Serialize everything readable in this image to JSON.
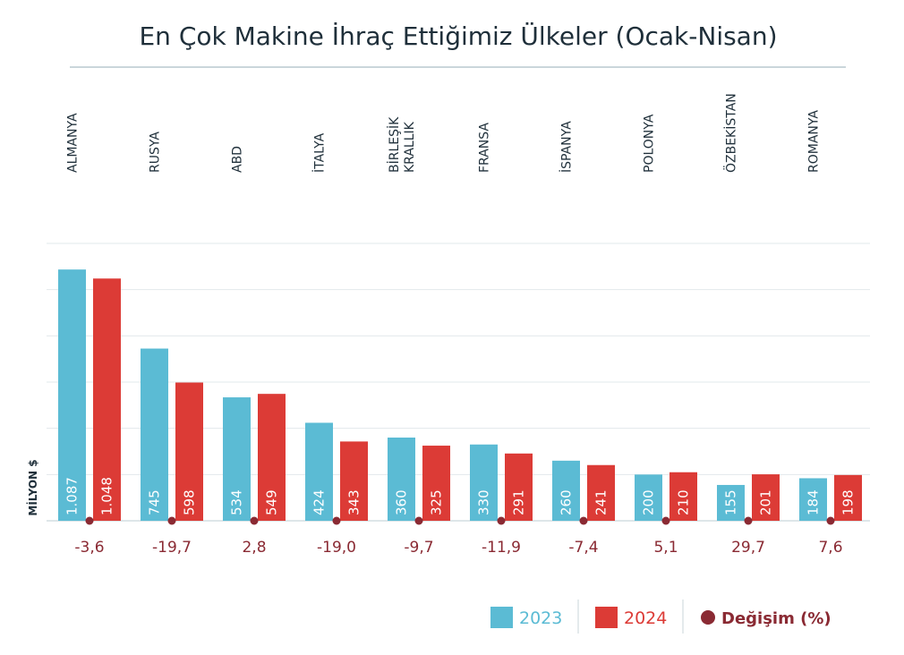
{
  "chart_data": {
    "type": "bar",
    "title": "En Çok Makine İhraç Ettiğimiz Ülkeler (Ocak-Nisan)",
    "ylabel": "MİLYON $",
    "categories": [
      "ALMANYA",
      "RUSYA",
      "ABD",
      "İTALYA",
      "BİRLEŞİK KRALLIK",
      "FRANSA",
      "İSPANYA",
      "POLONYA",
      "ÖZBEKİSTAN",
      "ROMANYA"
    ],
    "series": [
      {
        "name": "2023",
        "color": "#5bbbd4",
        "values": [
          1087,
          745,
          534,
          424,
          360,
          330,
          260,
          200,
          155,
          184
        ],
        "labels": [
          "1.087",
          "745",
          "534",
          "424",
          "360",
          "330",
          "260",
          "200",
          "155",
          "184"
        ]
      },
      {
        "name": "2024",
        "color": "#dc3b36",
        "values": [
          1048,
          598,
          549,
          343,
          325,
          291,
          241,
          210,
          201,
          198
        ],
        "labels": [
          "1.048",
          "598",
          "549",
          "343",
          "325",
          "291",
          "241",
          "210",
          "201",
          "198"
        ]
      }
    ],
    "change": {
      "name": "Değişim (%)",
      "color": "#8a2a33",
      "values": [
        -3.6,
        -19.7,
        2.8,
        -19.0,
        -9.7,
        -11.9,
        -7.4,
        5.1,
        29.7,
        7.6
      ],
      "labels": [
        "-3,6",
        "-19,7",
        "2,8",
        "-19,0",
        "-9,7",
        "-11,9",
        "-7,4",
        "5,1",
        "29,7",
        "7,6"
      ]
    },
    "ylim": [
      0,
      1200
    ],
    "grid": true,
    "legend": "bottom-right"
  }
}
